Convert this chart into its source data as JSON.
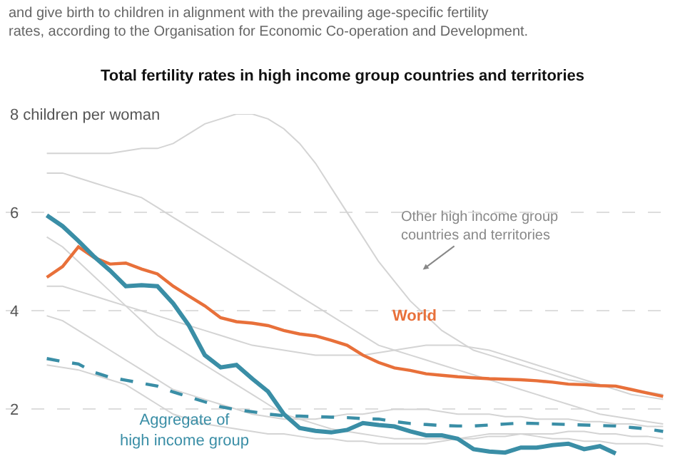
{
  "chart_data": {
    "type": "line",
    "title": "Total fertility rates in high income group countries and territories",
    "subtitle": "and give birth to children in alignment with the prevailing age-specific fertility rates, according to the Organisation for Economic Co-operation and Development.",
    "annotations": [
      "Other high income group countries and territories"
    ],
    "categories": [
      null,
      null,
      null,
      null,
      null,
      null,
      null,
      null,
      null,
      null,
      null,
      null,
      null,
      null,
      null,
      null,
      null,
      null,
      null,
      null,
      null,
      null,
      null,
      null,
      null,
      null,
      null,
      null,
      null,
      null,
      null,
      null,
      null,
      null,
      null,
      null,
      null,
      null,
      null,
      null
    ],
    "ylim": [
      1.05,
      8
    ],
    "yticks": [
      2,
      4,
      6,
      {
        "value": 8,
        "label": "8 children per woman"
      }
    ],
    "grid": "y",
    "legend": false,
    "marker": "none",
    "series": [
      {
        "color": "#d4d4d4",
        "values": [
          7.2,
          7.2,
          7.2,
          7.2,
          7.2,
          7.25,
          7.3,
          7.3,
          7.4,
          7.6,
          7.8,
          7.9,
          8.0,
          8.0,
          7.9,
          7.7,
          7.4,
          7.0,
          6.5,
          6.0,
          5.5,
          5.0,
          4.6,
          4.2,
          3.9,
          3.6,
          3.4,
          3.2,
          3.1,
          3.0,
          2.9,
          2.8,
          2.7,
          2.6,
          2.55,
          2.5,
          2.45,
          2.4,
          2.35,
          2.3
        ]
      },
      {
        "color": "#d4d4d4",
        "values": [
          6.8,
          6.8,
          6.7,
          6.6,
          6.5,
          6.4,
          6.3,
          6.1,
          5.9,
          5.7,
          5.5,
          5.3,
          5.1,
          4.9,
          4.7,
          4.5,
          4.3,
          4.1,
          3.9,
          3.7,
          3.5,
          3.3,
          3.2,
          3.1,
          3.0,
          2.9,
          2.8,
          2.7,
          2.6,
          2.5,
          2.4,
          2.3,
          2.2,
          2.1,
          2.0,
          1.9,
          1.85,
          1.8,
          1.75,
          1.7
        ]
      },
      {
        "color": "#d4d4d4",
        "values": [
          5.5,
          5.3,
          5.0,
          4.7,
          4.4,
          4.1,
          3.8,
          3.5,
          3.3,
          3.1,
          2.9,
          2.7,
          2.5,
          2.3,
          2.1,
          1.9,
          1.8,
          1.7,
          1.6,
          1.55,
          1.5,
          1.45,
          1.4,
          1.4,
          1.4,
          1.4,
          1.4,
          1.45,
          1.5,
          1.5,
          1.5,
          1.45,
          1.4,
          1.4,
          1.35,
          1.35,
          1.3,
          1.3,
          1.3,
          1.25
        ]
      },
      {
        "color": "#d4d4d4",
        "values": [
          3.9,
          3.8,
          3.6,
          3.4,
          3.2,
          3.0,
          2.8,
          2.6,
          2.4,
          2.3,
          2.2,
          2.1,
          2.0,
          1.9,
          1.85,
          1.8,
          1.8,
          1.8,
          1.85,
          1.9,
          1.9,
          1.95,
          2.0,
          2.0,
          2.0,
          1.95,
          1.9,
          1.9,
          1.9,
          1.85,
          1.85,
          1.8,
          1.8,
          1.8,
          1.75,
          1.75,
          1.7,
          1.7,
          1.65,
          1.65
        ]
      },
      {
        "color": "#d4d4d4",
        "values": [
          2.9,
          2.85,
          2.8,
          2.7,
          2.6,
          2.5,
          2.3,
          2.1,
          1.9,
          1.8,
          1.7,
          1.65,
          1.6,
          1.55,
          1.5,
          1.5,
          1.45,
          1.4,
          1.4,
          1.35,
          1.35,
          1.3,
          1.3,
          1.3,
          1.3,
          1.35,
          1.4,
          1.4,
          1.45,
          1.45,
          1.5,
          1.5,
          1.5,
          1.55,
          1.55,
          1.5,
          1.5,
          1.45,
          1.45,
          1.4
        ]
      },
      {
        "color": "#d4d4d4",
        "values": [
          4.5,
          4.5,
          4.4,
          4.3,
          4.2,
          4.1,
          4.0,
          3.9,
          3.8,
          3.7,
          3.6,
          3.5,
          3.4,
          3.3,
          3.25,
          3.2,
          3.15,
          3.1,
          3.1,
          3.1,
          3.1,
          3.15,
          3.2,
          3.25,
          3.3,
          3.3,
          3.3,
          3.25,
          3.2,
          3.1,
          3.0,
          2.9,
          2.8,
          2.7,
          2.6,
          2.5,
          2.4,
          2.3,
          2.25,
          2.2
        ]
      },
      {
        "name": "Aggregate of high income group",
        "color": "#3a8ea6",
        "line_style": "dashed",
        "values": [
          3.03,
          2.97,
          2.92,
          2.75,
          2.65,
          2.59,
          2.53,
          2.47,
          2.35,
          2.25,
          2.15,
          2.05,
          1.99,
          1.95,
          1.9,
          1.87,
          1.86,
          1.85,
          1.84,
          1.83,
          1.81,
          1.8,
          1.75,
          1.71,
          1.69,
          1.67,
          1.66,
          1.66,
          1.68,
          1.7,
          1.72,
          1.71,
          1.7,
          1.69,
          1.68,
          1.67,
          1.66,
          1.63,
          1.6,
          1.55
        ]
      },
      {
        "name": "World",
        "color": "#e8703a",
        "values": [
          4.68,
          4.9,
          5.3,
          5.08,
          4.95,
          4.97,
          4.85,
          4.75,
          4.5,
          4.3,
          4.1,
          3.86,
          3.78,
          3.75,
          3.7,
          3.6,
          3.53,
          3.49,
          3.4,
          3.3,
          3.1,
          2.95,
          2.84,
          2.79,
          2.72,
          2.69,
          2.66,
          2.64,
          2.62,
          2.61,
          2.6,
          2.58,
          2.55,
          2.51,
          2.5,
          2.48,
          2.47,
          2.4,
          2.33,
          2.26
        ]
      },
      {
        "color": "#3a8ea6",
        "values": [
          5.94,
          5.72,
          5.42,
          5.1,
          4.82,
          4.5,
          4.52,
          4.5,
          4.15,
          3.7,
          3.1,
          2.85,
          2.9,
          2.62,
          2.36,
          1.9,
          1.62,
          1.56,
          1.53,
          1.58,
          1.72,
          1.68,
          1.65,
          1.55,
          1.47,
          1.47,
          1.4,
          1.19,
          1.14,
          1.12,
          1.22,
          1.22,
          1.27,
          1.3,
          1.19,
          1.25,
          1.1,
          null,
          null,
          null
        ]
      }
    ]
  }
}
